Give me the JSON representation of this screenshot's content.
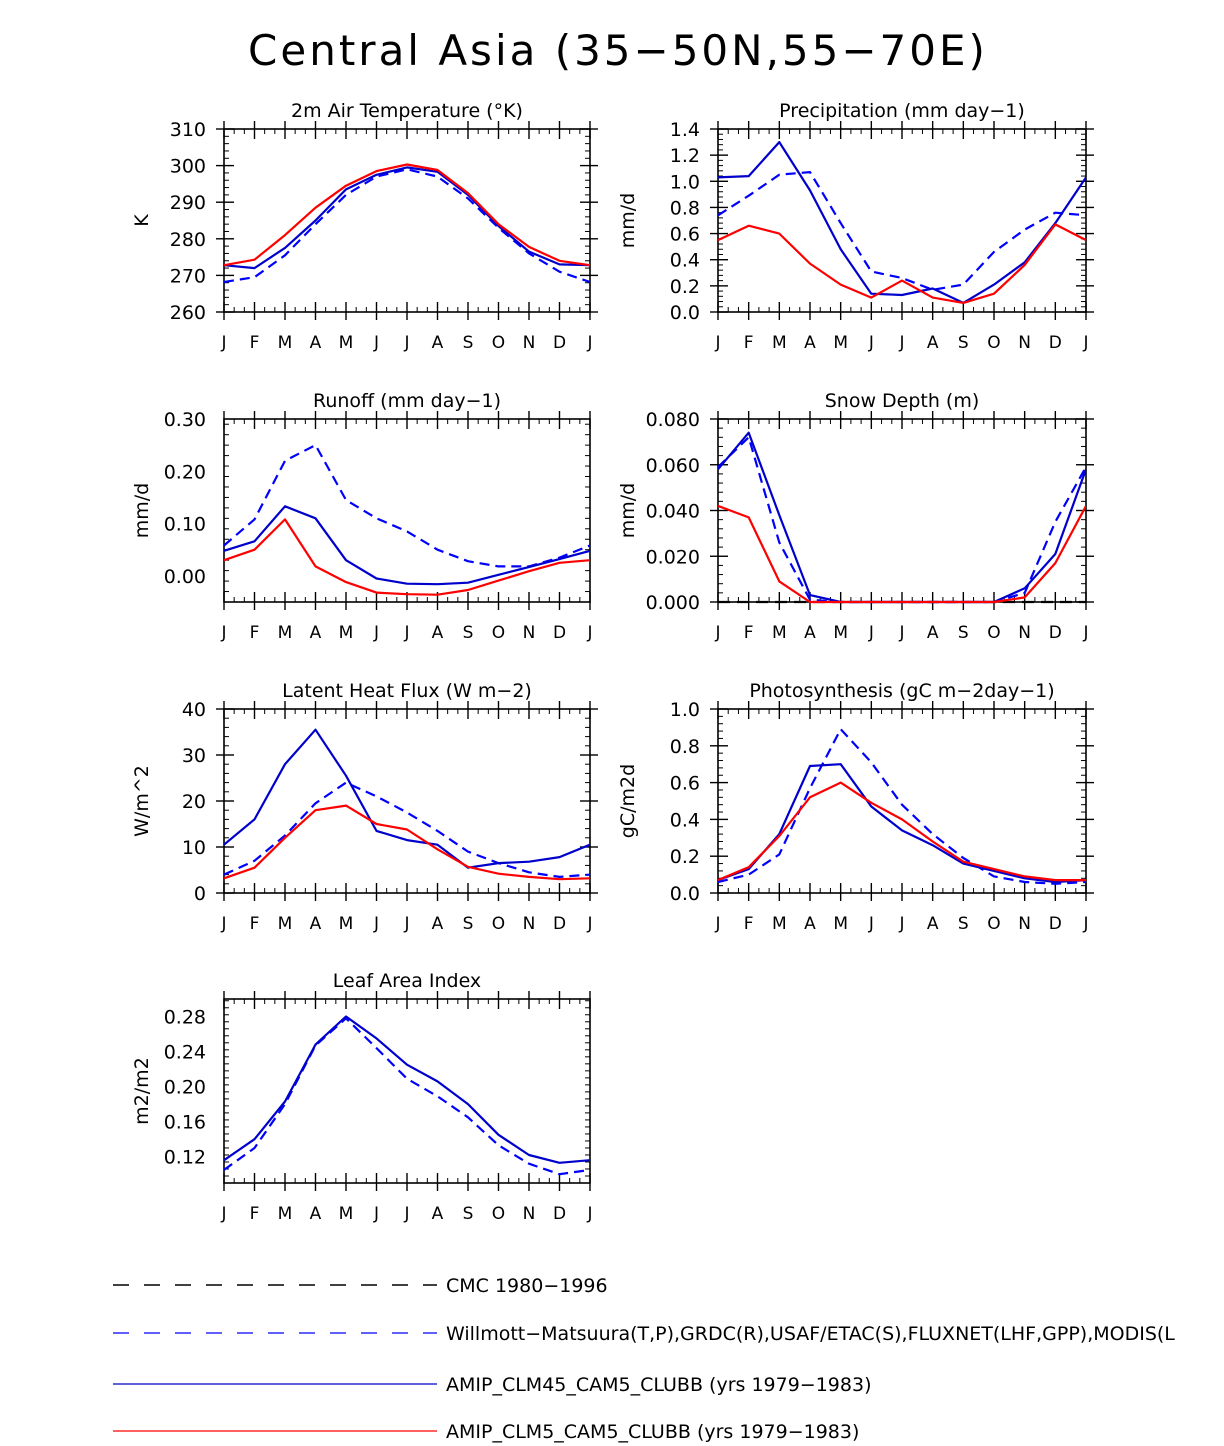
{
  "title": "Central Asia (35−50N,55−70E)",
  "months": [
    "J",
    "F",
    "M",
    "A",
    "M",
    "J",
    "J",
    "A",
    "S",
    "O",
    "N",
    "D",
    "J"
  ],
  "colors": {
    "obs": "#0000ff",
    "clm45": "#0000cc",
    "clm5": "#ff0000",
    "cmc": "#000000"
  },
  "chart_data": [
    {
      "type": "line",
      "title": "2m Air Temperature (°K)",
      "ylabel": "K",
      "ylim": [
        260,
        310
      ],
      "yticks": [
        260,
        270,
        280,
        290,
        300,
        310
      ],
      "ytick_labels": [
        "260",
        "270",
        "280",
        "290",
        "300",
        "310"
      ],
      "x": [
        "J",
        "F",
        "M",
        "A",
        "M",
        "J",
        "J",
        "A",
        "S",
        "O",
        "N",
        "D",
        "J"
      ],
      "series": [
        {
          "name": "Willmott-Matsuura(T,P),GRDC(R),USAF/ETAC(S),FLUXNET(LHF,GPP),MODIS(L",
          "style": "obs",
          "values": [
            268.2,
            269.5,
            275.5,
            284.0,
            292.0,
            297.0,
            299.0,
            297.0,
            291.0,
            283.0,
            276.0,
            271.0,
            268.2
          ]
        },
        {
          "name": "AMIP_CLM45_CAM5_CLUBB (yrs 1979−1983)",
          "style": "clm45",
          "values": [
            272.8,
            272.0,
            277.5,
            285.0,
            293.5,
            297.5,
            299.5,
            298.3,
            292.0,
            283.5,
            276.5,
            273.0,
            272.8
          ]
        },
        {
          "name": "AMIP_CLM5_CAM5_CLUBB (yrs 1979−1983)",
          "style": "clm5",
          "values": [
            272.8,
            274.3,
            281.0,
            288.5,
            294.5,
            298.5,
            300.3,
            298.8,
            292.5,
            284.0,
            277.8,
            274.0,
            272.8
          ]
        }
      ]
    },
    {
      "type": "line",
      "title": "Precipitation (mm day−1)",
      "ylabel": "mm/d",
      "ylim": [
        0,
        1.4
      ],
      "yticks": [
        0,
        0.2,
        0.4,
        0.6,
        0.8,
        1.0,
        1.2,
        1.4
      ],
      "ytick_labels": [
        "0.0",
        "0.2",
        "0.4",
        "0.6",
        "0.8",
        "1.0",
        "1.2",
        "1.4"
      ],
      "x": [
        "J",
        "F",
        "M",
        "A",
        "M",
        "J",
        "J",
        "A",
        "S",
        "O",
        "N",
        "D",
        "J"
      ],
      "series": [
        {
          "name": "Willmott-Matsuura(T,P),GRDC(R),USAF/ETAC(S),FLUXNET(LHF,GPP),MODIS(L",
          "style": "obs",
          "values": [
            0.74,
            0.89,
            1.05,
            1.07,
            0.68,
            0.31,
            0.26,
            0.17,
            0.21,
            0.46,
            0.63,
            0.76,
            0.74
          ]
        },
        {
          "name": "AMIP_CLM45_CAM5_CLUBB (yrs 1979−1983)",
          "style": "clm45",
          "values": [
            1.03,
            1.04,
            1.3,
            0.93,
            0.48,
            0.14,
            0.13,
            0.18,
            0.07,
            0.21,
            0.38,
            0.68,
            1.03
          ]
        },
        {
          "name": "AMIP_CLM5_CAM5_CLUBB (yrs 1979−1983)",
          "style": "clm5",
          "values": [
            0.55,
            0.66,
            0.6,
            0.37,
            0.21,
            0.11,
            0.24,
            0.11,
            0.07,
            0.14,
            0.36,
            0.67,
            0.55
          ]
        }
      ]
    },
    {
      "type": "line",
      "title": "Runoff (mm day−1)",
      "ylabel": "mm/d",
      "ylim": [
        -0.05,
        0.3
      ],
      "yticks": [
        0,
        0.1,
        0.2,
        0.3
      ],
      "ytick_labels": [
        "0.00",
        "0.10",
        "0.20",
        "0.30"
      ],
      "x": [
        "J",
        "F",
        "M",
        "A",
        "M",
        "J",
        "J",
        "A",
        "S",
        "O",
        "N",
        "D",
        "J"
      ],
      "series": [
        {
          "name": "Willmott-Matsuura(T,P),GRDC(R),USAF/ETAC(S),FLUXNET(LHF,GPP),MODIS(L",
          "style": "obs",
          "values": [
            0.058,
            0.108,
            0.22,
            0.25,
            0.145,
            0.11,
            0.085,
            0.05,
            0.028,
            0.018,
            0.018,
            0.035,
            0.058
          ]
        },
        {
          "name": "AMIP_CLM45_CAM5_CLUBB (yrs 1979−1983)",
          "style": "clm45",
          "values": [
            0.048,
            0.066,
            0.133,
            0.11,
            0.03,
            -0.005,
            -0.015,
            -0.016,
            -0.013,
            0.002,
            0.017,
            0.032,
            0.048
          ]
        },
        {
          "name": "AMIP_CLM5_CAM5_CLUBB (yrs 1979−1983)",
          "style": "clm5",
          "values": [
            0.03,
            0.05,
            0.108,
            0.018,
            -0.012,
            -0.032,
            -0.035,
            -0.036,
            -0.027,
            -0.009,
            0.009,
            0.025,
            0.03
          ]
        }
      ]
    },
    {
      "type": "line",
      "title": "Snow Depth (m)",
      "ylabel": "mm/d",
      "ylim": [
        0,
        0.08
      ],
      "yticks": [
        0,
        0.02,
        0.04,
        0.06,
        0.08
      ],
      "ytick_labels": [
        "0.000",
        "0.020",
        "0.040",
        "0.060",
        "0.080"
      ],
      "x": [
        "J",
        "F",
        "M",
        "A",
        "M",
        "J",
        "J",
        "A",
        "S",
        "O",
        "N",
        "D",
        "J"
      ],
      "series": [
        {
          "name": "CMC 1980−1996",
          "style": "cmc",
          "values": [
            0,
            0,
            0,
            0,
            0,
            0,
            0,
            0,
            0,
            0,
            0,
            0,
            0
          ]
        },
        {
          "name": "Willmott-Matsuura(T,P),GRDC(R),USAF/ETAC(S),FLUXNET(LHF,GPP),MODIS(L",
          "style": "obs",
          "values": [
            0.059,
            0.072,
            0.026,
            0.001,
            0,
            0,
            0,
            0,
            0,
            0,
            0.004,
            0.035,
            0.059
          ]
        },
        {
          "name": "AMIP_CLM45_CAM5_CLUBB (yrs 1979−1983)",
          "style": "clm45",
          "values": [
            0.058,
            0.074,
            0.038,
            0.003,
            0,
            0,
            0,
            0,
            0,
            0,
            0.006,
            0.021,
            0.058
          ]
        },
        {
          "name": "AMIP_CLM5_CAM5_CLUBB (yrs 1979−1983)",
          "style": "clm5",
          "values": [
            0.042,
            0.037,
            0.009,
            0,
            0,
            0,
            0,
            0,
            0,
            0,
            0.002,
            0.017,
            0.042
          ]
        }
      ]
    },
    {
      "type": "line",
      "title": "Latent Heat Flux (W m−2)",
      "ylabel": "W/m^2",
      "ylim": [
        0,
        40
      ],
      "yticks": [
        0,
        10,
        20,
        30,
        40
      ],
      "ytick_labels": [
        "0",
        "10",
        "20",
        "30",
        "40"
      ],
      "x": [
        "J",
        "F",
        "M",
        "A",
        "M",
        "J",
        "J",
        "A",
        "S",
        "O",
        "N",
        "D",
        "J"
      ],
      "series": [
        {
          "name": "Willmott-Matsuura(T,P),GRDC(R),USAF/ETAC(S),FLUXNET(LHF,GPP),MODIS(L",
          "style": "obs",
          "values": [
            4.0,
            7.0,
            12.5,
            19.5,
            24.0,
            21.0,
            17.5,
            13.5,
            9.0,
            6.5,
            4.5,
            3.5,
            4.0
          ]
        },
        {
          "name": "AMIP_CLM45_CAM5_CLUBB (yrs 1979−1983)",
          "style": "clm45",
          "values": [
            10.5,
            16.0,
            28.0,
            35.5,
            25.5,
            13.5,
            11.5,
            10.5,
            5.5,
            6.5,
            6.8,
            7.8,
            10.5
          ]
        },
        {
          "name": "AMIP_CLM5_CAM5_CLUBB (yrs 1979−1983)",
          "style": "clm5",
          "values": [
            3.2,
            5.5,
            12.0,
            18.0,
            19.0,
            15.0,
            13.8,
            9.5,
            5.7,
            4.2,
            3.5,
            3.0,
            3.2
          ]
        }
      ]
    },
    {
      "type": "line",
      "title": "Photosynthesis (gC m−2day−1)",
      "ylabel": "gC/m2d",
      "ylim": [
        0,
        1.0
      ],
      "yticks": [
        0,
        0.2,
        0.4,
        0.6,
        0.8,
        1.0
      ],
      "ytick_labels": [
        "0.0",
        "0.2",
        "0.4",
        "0.6",
        "0.8",
        "1.0"
      ],
      "x": [
        "J",
        "F",
        "M",
        "A",
        "M",
        "J",
        "J",
        "A",
        "S",
        "O",
        "N",
        "D",
        "J"
      ],
      "series": [
        {
          "name": "Willmott-Matsuura(T,P),GRDC(R),USAF/ETAC(S),FLUXNET(LHF,GPP),MODIS(L",
          "style": "obs",
          "values": [
            0.06,
            0.1,
            0.21,
            0.57,
            0.89,
            0.71,
            0.48,
            0.32,
            0.19,
            0.09,
            0.06,
            0.05,
            0.06
          ]
        },
        {
          "name": "AMIP_CLM45_CAM5_CLUBB (yrs 1979−1983)",
          "style": "clm45",
          "values": [
            0.07,
            0.13,
            0.32,
            0.69,
            0.7,
            0.47,
            0.34,
            0.26,
            0.16,
            0.12,
            0.08,
            0.06,
            0.07
          ]
        },
        {
          "name": "AMIP_CLM5_CAM5_CLUBB (yrs 1979−1983)",
          "style": "clm5",
          "values": [
            0.07,
            0.14,
            0.31,
            0.52,
            0.6,
            0.49,
            0.4,
            0.28,
            0.17,
            0.13,
            0.09,
            0.07,
            0.07
          ]
        }
      ]
    },
    {
      "type": "line",
      "title": "Leaf Area Index",
      "ylabel": "m2/m2",
      "ylim": [
        0.09,
        0.3
      ],
      "yticks": [
        0.12,
        0.16,
        0.2,
        0.24,
        0.28
      ],
      "ytick_labels": [
        "0.12",
        "0.16",
        "0.20",
        "0.24",
        "0.28"
      ],
      "x": [
        "J",
        "F",
        "M",
        "A",
        "M",
        "J",
        "J",
        "A",
        "S",
        "O",
        "N",
        "D",
        "J"
      ],
      "series": [
        {
          "name": "Willmott-Matsuura(T,P),GRDC(R),USAF/ETAC(S),FLUXNET(LHF,GPP),MODIS(L",
          "style": "obs",
          "values": [
            0.105,
            0.13,
            0.18,
            0.247,
            0.278,
            0.244,
            0.209,
            0.189,
            0.165,
            0.133,
            0.112,
            0.1,
            0.105
          ]
        },
        {
          "name": "AMIP_CLM45_CAM5_CLUBB (yrs 1979−1983)",
          "style": "clm45",
          "values": [
            0.116,
            0.14,
            0.183,
            0.248,
            0.28,
            0.255,
            0.225,
            0.206,
            0.18,
            0.145,
            0.122,
            0.113,
            0.116
          ]
        }
      ]
    }
  ],
  "legend": [
    {
      "style": "cmc",
      "label": "CMC 1980−1996"
    },
    {
      "style": "obs",
      "label": "Willmott−Matsuura(T,P),GRDC(R),USAF/ETAC(S),FLUXNET(LHF,GPP),MODIS(L"
    },
    {
      "style": "clm45",
      "label": "AMIP_CLM45_CAM5_CLUBB (yrs 1979−1983)"
    },
    {
      "style": "clm5",
      "label": "AMIP_CLM5_CAM5_CLUBB (yrs 1979−1983)"
    }
  ]
}
